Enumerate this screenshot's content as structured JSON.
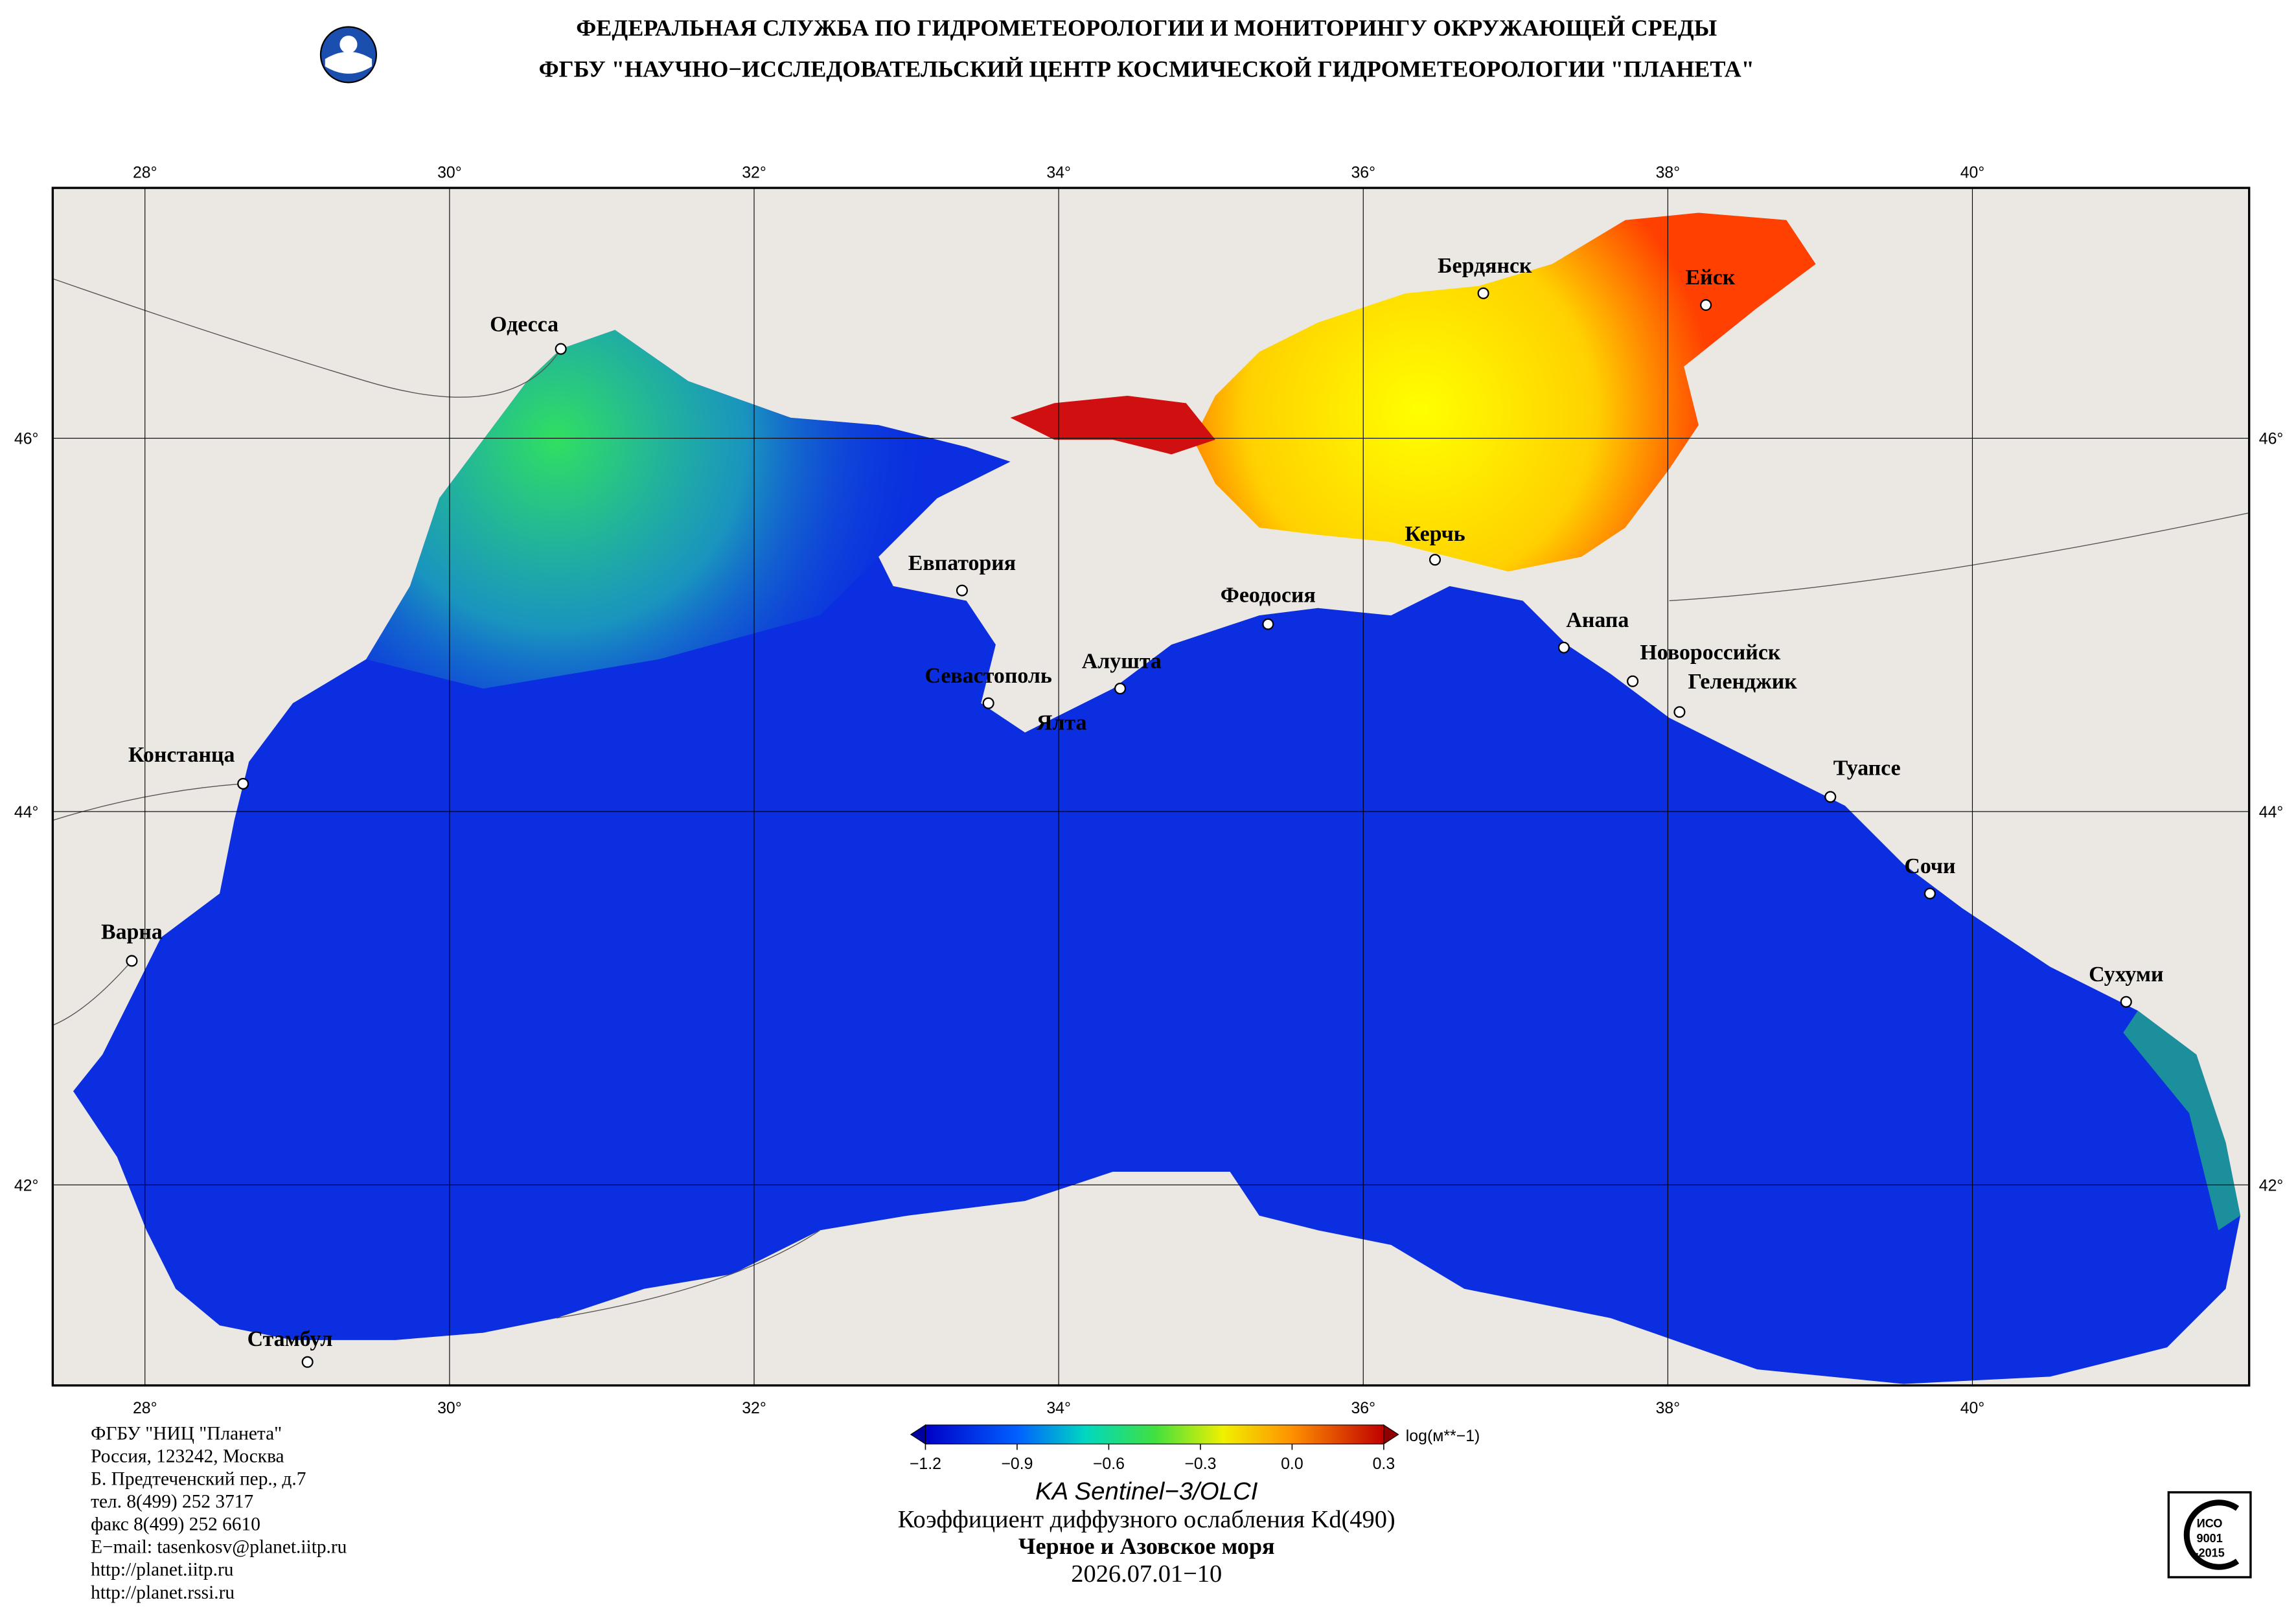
{
  "header": {
    "line1": "ФЕДЕРАЛЬНАЯ СЛУЖБА ПО ГИДРОМЕТЕОРОЛОГИИ И МОНИТОРИНГУ ОКРУЖАЮЩЕЙ СРЕДЫ",
    "line2": "ФГБУ \"НАУЧНО−ИССЛЕДОВАТЕЛЬСКИЙ ЦЕНТР КОСМИЧЕСКОЙ ГИДРОМЕТЕОРОЛОГИИ \"ПЛАНЕТА\""
  },
  "map": {
    "lon_ticks": [
      {
        "value": 28,
        "label": "28°"
      },
      {
        "value": 30,
        "label": "30°"
      },
      {
        "value": 32,
        "label": "32°"
      },
      {
        "value": 34,
        "label": "34°"
      },
      {
        "value": 36,
        "label": "36°"
      },
      {
        "value": 38,
        "label": "38°"
      },
      {
        "value": 40,
        "label": "40°"
      }
    ],
    "lat_ticks": [
      {
        "value": 46,
        "label": "46°"
      },
      {
        "value": 44,
        "label": "44°"
      },
      {
        "value": 42,
        "label": "42°"
      }
    ],
    "cities": [
      "Одесса",
      "Бердянск",
      "Ейск",
      "Евпатория",
      "Керчь",
      "Феодосия",
      "Анапа",
      "Новороссийск",
      "Геленджик",
      "Алушта",
      "Севастополь",
      "Ялта",
      "Туапсе",
      "Сочи",
      "Сухуми",
      "Констанца",
      "Варна",
      "Стамбул"
    ]
  },
  "colorbar": {
    "lim": [
      -1.2,
      0.3
    ],
    "ticks": [
      {
        "value": -1.2,
        "label": "−1.2"
      },
      {
        "value": -0.9,
        "label": "−0.9"
      },
      {
        "value": -0.6,
        "label": "−0.6"
      },
      {
        "value": -0.3,
        "label": "−0.3"
      },
      {
        "value": 0,
        "label": "0.0"
      },
      {
        "value": 0.3,
        "label": "0.3"
      }
    ],
    "unit": "log(м**−1)"
  },
  "caption": {
    "satellite": "KA Sentinel−3/OLCI",
    "parameter": "Коэффициент диффузного ослабления Kd(490)",
    "region": "Черное и Азовское моря",
    "date": "2026.07.01−10"
  },
  "footer": {
    "lines": [
      "ФГБУ \"НИЦ \"Планета\"",
      "Россия, 123242, Москва",
      "Б. Предтеченский пер., д.7",
      "тел. 8(499) 252 3717",
      "факс 8(499) 252 6610",
      "E−mail: tasenkosv@planet.iitp.ru",
      "http://planet.iitp.ru",
      "http://planet.rssi.ru"
    ]
  },
  "iso_logo": {
    "lines": [
      "ИСО",
      "9001",
      "-2015"
    ]
  }
}
